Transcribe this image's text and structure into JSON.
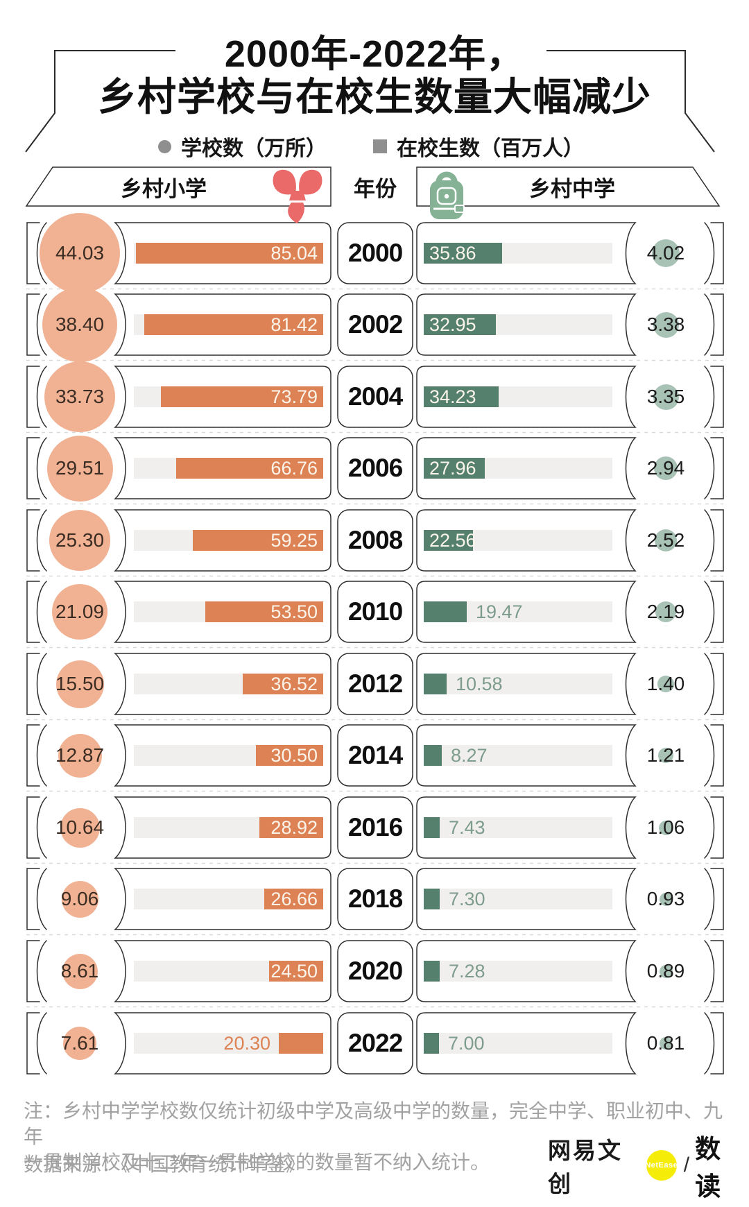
{
  "title": {
    "line1": "2000年-2022年，",
    "line2": "乡村学校与在校生数量大幅减少"
  },
  "legend": {
    "schools_label": "学校数（万所）",
    "students_label": "在校生数（百万人）",
    "marker_color": "#8f8f8f"
  },
  "header": {
    "left": "乡村小学",
    "center": "年份",
    "right": "乡村中学"
  },
  "notes": {
    "line1": "注：乡村中学学校数仅统计初级中学及高级中学的数量，完全中学、职业初中、九年",
    "line2": "一贯制学校及十二年一贯制学校的数量暂不纳入统计。",
    "source": "数据来源：《中国教育统计年鉴》"
  },
  "logo": {
    "brand": "网易文创",
    "netease": "NetEase",
    "divider": "/",
    "product": "数读"
  },
  "colors": {
    "primary_bar": "#dd8254",
    "primary_circle": "#f1b193",
    "middle_bar": "#54806d",
    "middle_circle": "#a8c2b6",
    "track": "#f0efed",
    "outline": "#2e2e2e",
    "scarf_red": "#ea6a6a",
    "backpack_green": "#85b295",
    "logo_yellow": "#f5ec08",
    "note_gray": "#a2a2a2"
  },
  "chart_data": {
    "type": "bar",
    "title": "2000年-2022年，乡村学校与在校生数量大幅减少",
    "categories": [
      2000,
      2002,
      2004,
      2006,
      2008,
      2010,
      2012,
      2014,
      2016,
      2018,
      2020,
      2022
    ],
    "xlabel": "年份",
    "series": [
      {
        "name": "乡村小学 学校数（万所）",
        "values": [
          44.03,
          38.4,
          33.73,
          29.51,
          25.3,
          21.09,
          15.5,
          12.87,
          10.64,
          9.06,
          8.61,
          7.61
        ]
      },
      {
        "name": "乡村小学 在校生数（百万人）",
        "values": [
          85.04,
          81.42,
          73.79,
          66.76,
          59.25,
          53.5,
          36.52,
          30.5,
          28.92,
          26.66,
          24.5,
          20.3
        ]
      },
      {
        "name": "乡村中学 在校生数（百万人）",
        "values": [
          35.86,
          32.95,
          34.23,
          27.96,
          22.56,
          19.47,
          10.58,
          8.27,
          7.43,
          7.3,
          7.28,
          7.0
        ]
      },
      {
        "name": "乡村中学 学校数（万所）",
        "values": [
          4.02,
          3.38,
          3.35,
          2.94,
          2.52,
          2.19,
          1.4,
          1.21,
          1.06,
          0.93,
          0.89,
          0.81
        ]
      }
    ],
    "bar_axis_max": 86,
    "legend_position": "top",
    "grid": false
  }
}
